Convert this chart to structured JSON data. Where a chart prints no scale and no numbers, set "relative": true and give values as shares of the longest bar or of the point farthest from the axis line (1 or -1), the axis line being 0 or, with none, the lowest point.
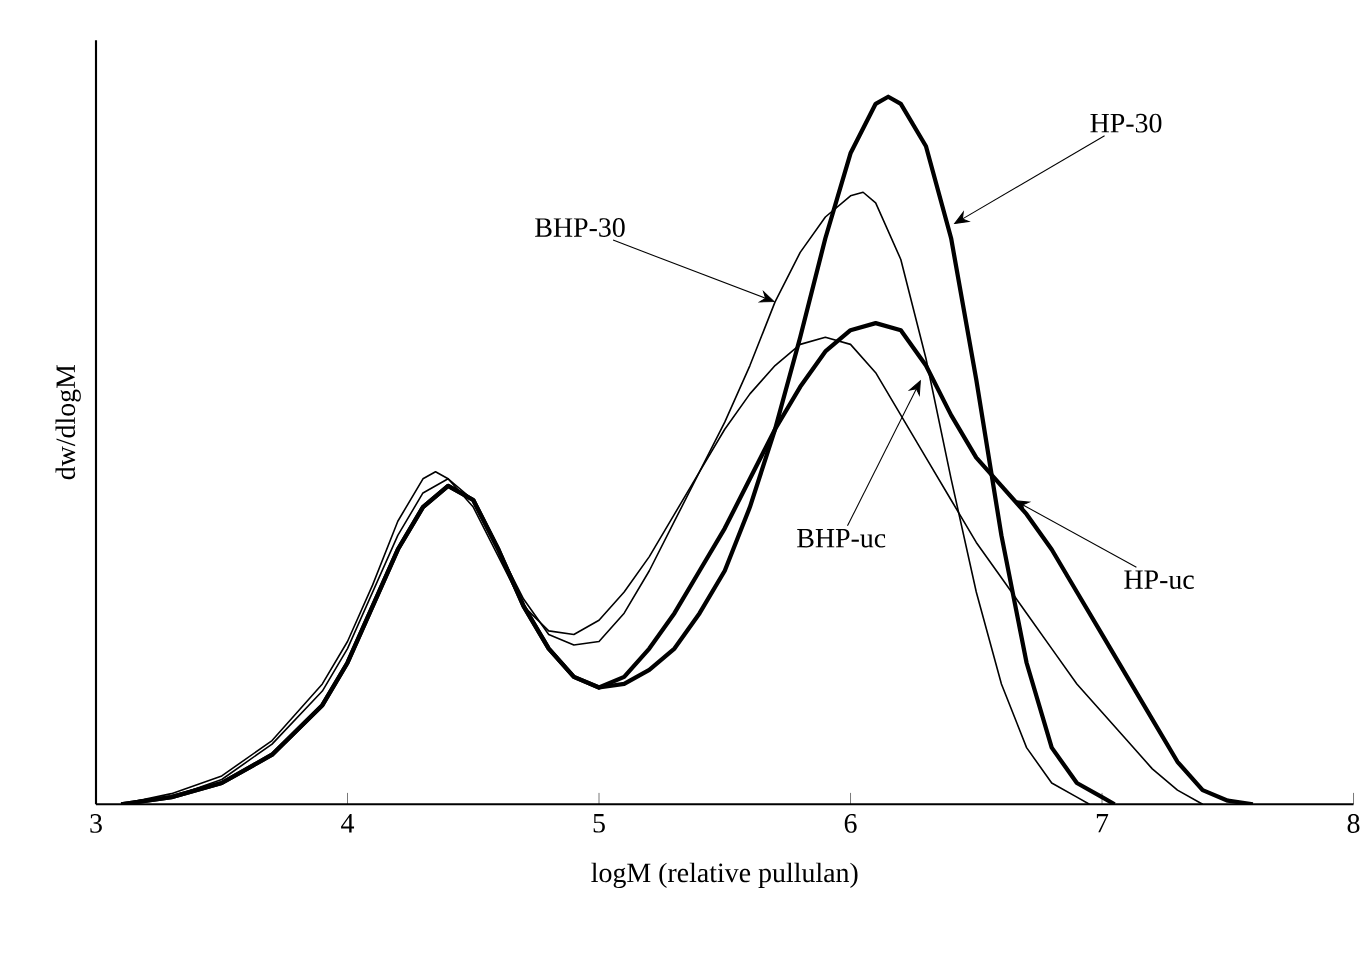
{
  "chart_data": {
    "type": "line",
    "relative": true,
    "xlabel": "logM (relative pullulan)",
    "ylabel": "dw/dlogM",
    "xlim": [
      3,
      8
    ],
    "xticks": [
      3,
      4,
      5,
      6,
      7,
      8
    ],
    "grid": false,
    "marker": "none",
    "line_style": "solid",
    "series": [
      {
        "color": "#000000",
        "x": [
          3.1,
          3.3,
          3.5,
          3.7,
          3.9,
          4.0,
          4.1,
          4.2,
          4.3,
          4.4,
          4.5,
          4.6,
          4.7,
          4.8,
          4.9,
          5.0,
          5.1,
          5.2,
          5.3,
          5.4,
          5.5,
          5.6,
          5.7,
          5.8,
          5.9,
          6.0,
          6.1,
          6.15,
          6.2,
          6.3,
          6.4,
          6.5,
          6.6,
          6.7,
          6.8,
          6.9,
          7.0,
          7.05
        ],
        "values": [
          0,
          0.01,
          0.03,
          0.07,
          0.14,
          0.2,
          0.28,
          0.36,
          0.42,
          0.45,
          0.43,
          0.36,
          0.28,
          0.22,
          0.18,
          0.165,
          0.17,
          0.19,
          0.22,
          0.27,
          0.33,
          0.42,
          0.53,
          0.66,
          0.8,
          0.92,
          0.99,
          1.0,
          0.99,
          0.93,
          0.8,
          0.6,
          0.38,
          0.2,
          0.08,
          0.03,
          0.01,
          0
        ]
      },
      {
        "color": "#000000",
        "x": [
          3.1,
          3.3,
          3.5,
          3.7,
          3.9,
          4.0,
          4.1,
          4.2,
          4.3,
          4.4,
          4.5,
          4.6,
          4.7,
          4.8,
          4.9,
          5.0,
          5.1,
          5.2,
          5.3,
          5.4,
          5.5,
          5.6,
          5.7,
          5.8,
          5.9,
          6.0,
          6.1,
          6.2,
          6.3,
          6.4,
          6.5,
          6.6,
          6.7,
          6.8,
          6.9,
          7.0,
          7.1,
          7.2,
          7.3,
          7.4,
          7.5,
          7.6
        ],
        "values": [
          0,
          0.01,
          0.03,
          0.07,
          0.14,
          0.2,
          0.28,
          0.36,
          0.42,
          0.45,
          0.43,
          0.36,
          0.28,
          0.22,
          0.18,
          0.165,
          0.18,
          0.22,
          0.27,
          0.33,
          0.39,
          0.46,
          0.53,
          0.59,
          0.64,
          0.67,
          0.68,
          0.67,
          0.62,
          0.55,
          0.49,
          0.45,
          0.41,
          0.36,
          0.3,
          0.24,
          0.18,
          0.12,
          0.06,
          0.02,
          0.005,
          0
        ]
      },
      {
        "color": "#000000",
        "x": [
          3.1,
          3.3,
          3.5,
          3.7,
          3.9,
          4.0,
          4.1,
          4.2,
          4.3,
          4.35,
          4.4,
          4.5,
          4.6,
          4.7,
          4.8,
          4.9,
          5.0,
          5.1,
          5.2,
          5.3,
          5.4,
          5.5,
          5.6,
          5.7,
          5.8,
          5.9,
          6.0,
          6.05,
          6.1,
          6.2,
          6.3,
          6.4,
          6.5,
          6.6,
          6.7,
          6.8,
          6.9,
          6.95
        ],
        "values": [
          0,
          0.015,
          0.04,
          0.09,
          0.17,
          0.23,
          0.31,
          0.4,
          0.46,
          0.47,
          0.46,
          0.42,
          0.35,
          0.28,
          0.245,
          0.24,
          0.26,
          0.3,
          0.35,
          0.41,
          0.47,
          0.54,
          0.62,
          0.71,
          0.78,
          0.83,
          0.86,
          0.865,
          0.85,
          0.77,
          0.63,
          0.46,
          0.3,
          0.17,
          0.08,
          0.03,
          0.01,
          0
        ]
      },
      {
        "color": "#000000",
        "x": [
          3.1,
          3.3,
          3.5,
          3.7,
          3.9,
          4.0,
          4.1,
          4.2,
          4.3,
          4.4,
          4.5,
          4.6,
          4.7,
          4.8,
          4.9,
          5.0,
          5.1,
          5.2,
          5.3,
          5.4,
          5.5,
          5.6,
          5.7,
          5.8,
          5.9,
          6.0,
          6.1,
          6.2,
          6.3,
          6.4,
          6.5,
          6.6,
          6.7,
          6.8,
          6.9,
          7.0,
          7.1,
          7.2,
          7.3,
          7.4
        ],
        "values": [
          0,
          0.01,
          0.035,
          0.085,
          0.16,
          0.22,
          0.3,
          0.38,
          0.44,
          0.46,
          0.43,
          0.36,
          0.29,
          0.24,
          0.225,
          0.23,
          0.27,
          0.33,
          0.4,
          0.47,
          0.53,
          0.58,
          0.62,
          0.65,
          0.66,
          0.65,
          0.61,
          0.55,
          0.49,
          0.43,
          0.37,
          0.32,
          0.27,
          0.22,
          0.17,
          0.13,
          0.09,
          0.05,
          0.02,
          0
        ]
      }
    ],
    "annotations": [
      {
        "text": "HP-30",
        "x": 6.41,
        "y": 0.82
      },
      {
        "text": "BHP-30",
        "x": 5.7,
        "y": 0.71
      },
      {
        "text": "BHP-uc",
        "x": 6.28,
        "y": 0.6
      },
      {
        "text": "HP-uc",
        "x": 6.65,
        "y": 0.43
      }
    ]
  }
}
